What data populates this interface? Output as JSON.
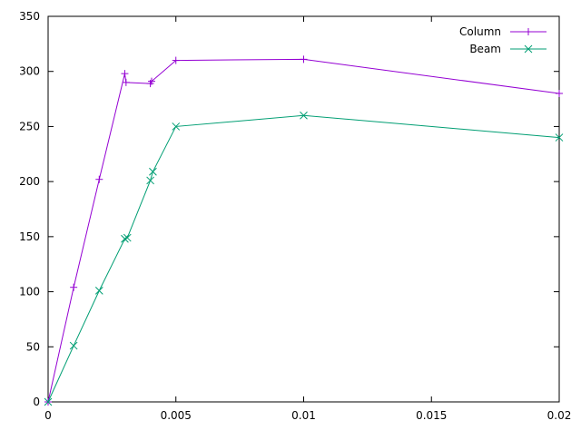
{
  "chart_data": {
    "type": "line",
    "title": "",
    "xlabel": "",
    "ylabel": "",
    "xlim": [
      0,
      0.02
    ],
    "ylim": [
      0,
      350
    ],
    "x_ticks": [
      0,
      0.005,
      0.01,
      0.015,
      0.02
    ],
    "x_tick_labels": [
      "0",
      "0.005",
      "0.01",
      "0.015",
      "0.02"
    ],
    "y_ticks": [
      0,
      50,
      100,
      150,
      200,
      250,
      300,
      350
    ],
    "y_tick_labels": [
      "0",
      "50",
      "100",
      "150",
      "200",
      "250",
      "300",
      "350"
    ],
    "grid": false,
    "legend_position": "top-right",
    "series": [
      {
        "name": "Column",
        "color": "#9400d3",
        "marker": "plus",
        "points": [
          [
            0,
            0
          ],
          [
            0.001,
            104
          ],
          [
            0.002,
            202
          ],
          [
            0.003,
            298
          ],
          [
            0.00305,
            290
          ],
          [
            0.004,
            289
          ],
          [
            0.00405,
            291
          ],
          [
            0.005,
            310
          ],
          [
            0.01,
            311
          ],
          [
            0.02,
            280
          ]
        ]
      },
      {
        "name": "Beam",
        "color": "#009e73",
        "marker": "cross",
        "points": [
          [
            0,
            0
          ],
          [
            0.001,
            51
          ],
          [
            0.002,
            101
          ],
          [
            0.003,
            148
          ],
          [
            0.0031,
            149
          ],
          [
            0.004,
            201
          ],
          [
            0.0041,
            209
          ],
          [
            0.005,
            250
          ],
          [
            0.01,
            260
          ],
          [
            0.02,
            240
          ]
        ]
      }
    ]
  }
}
